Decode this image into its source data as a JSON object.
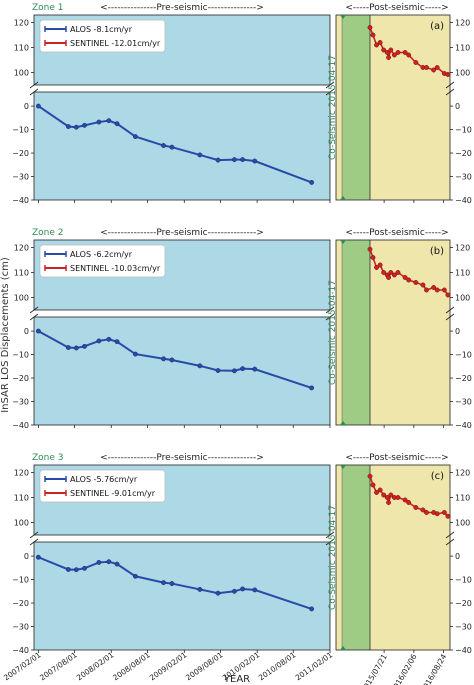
{
  "figure": {
    "ylabel": "InSAR LOS Displacements (cm)",
    "xlabel": "YEAR",
    "pre_label": "<---------------Pre-seismic--------------->",
    "post_label": "<-----Post-seismic----->",
    "co_label": "Co-Seismic 2015-04-17",
    "colors": {
      "pre_bg": "#add8e6",
      "co_bg": "#9fcc84",
      "co_edge": "#a9d08e",
      "post_bg": "#efe6ac",
      "alos": "#2a4aa8",
      "sentinel": "#cc2222",
      "zone_label": "#2e8b57"
    },
    "pre_xticks": [
      "2007/02/01",
      "2007/08/01",
      "2008/02/01",
      "2008/08/01",
      "2009/02/01",
      "2009/08/01",
      "2010/02/01",
      "2010/08/01",
      "2011/02/01"
    ],
    "post_xticks": [
      "2015/07/21",
      "2016/02/06",
      "2016/08/24"
    ]
  },
  "chart_data": [
    {
      "type": "line",
      "zone": "Zone 1",
      "panel_letter": "(a)",
      "series": [
        {
          "name": "ALOS -8.1cm/yr",
          "x": [
            "2007-02-01",
            "2007-07-01",
            "2007-08-10",
            "2007-09-20",
            "2007-12-01",
            "2008-01-20",
            "2008-03-01",
            "2008-06-01",
            "2008-10-20",
            "2008-12-01",
            "2009-04-20",
            "2009-07-20",
            "2009-10-10",
            "2009-11-20",
            "2010-01-20",
            "2010-11-01"
          ],
          "y": [
            0,
            -8.7,
            -9,
            -8.2,
            -6.8,
            -6.2,
            -7.5,
            -13,
            -16.8,
            -17.5,
            -20.8,
            -23,
            -22.8,
            -22.8,
            -23.4,
            -32.5
          ]
        },
        {
          "name": "SENTINEL -12.01cm/yr",
          "x": [
            "2015-04-17",
            "2015-05-07",
            "2015-05-31",
            "2015-06-24",
            "2015-07-18",
            "2015-08-11",
            "2015-08-20",
            "2015-09-04",
            "2015-09-28",
            "2015-10-22",
            "2015-12-09",
            "2016-01-02",
            "2016-02-19",
            "2016-04-07",
            "2016-05-01",
            "2016-06-18",
            "2016-07-12",
            "2016-08-29",
            "2016-09-22"
          ],
          "y": [
            118,
            115,
            111,
            112,
            109,
            108,
            106,
            109,
            107,
            108,
            108,
            107,
            104,
            102,
            102,
            101,
            102,
            99.6,
            99.2
          ]
        }
      ],
      "upper_ylim": [
        95,
        123
      ],
      "upper_yticks": [
        100,
        110,
        120
      ],
      "lower_ylim": [
        -40,
        6
      ],
      "lower_yticks": [
        0,
        -10,
        -20,
        -30,
        -40
      ]
    },
    {
      "type": "line",
      "zone": "Zone 2",
      "panel_letter": "(b)",
      "series": [
        {
          "name": "ALOS -6.2cm/yr",
          "x": [
            "2007-02-01",
            "2007-07-01",
            "2007-08-10",
            "2007-09-20",
            "2007-12-01",
            "2008-01-20",
            "2008-03-01",
            "2008-06-01",
            "2008-10-20",
            "2008-12-01",
            "2009-04-20",
            "2009-07-20",
            "2009-10-10",
            "2009-11-20",
            "2010-01-20",
            "2010-11-01"
          ],
          "y": [
            0,
            -7,
            -7.2,
            -6.5,
            -4.2,
            -3.5,
            -4.5,
            -9.8,
            -11.8,
            -12.3,
            -14.8,
            -16.8,
            -16.9,
            -16,
            -16.2,
            -24.2
          ]
        },
        {
          "name": "SENTINEL -10.03cm/yr",
          "x": [
            "2015-04-17",
            "2015-05-07",
            "2015-05-31",
            "2015-06-24",
            "2015-07-18",
            "2015-08-11",
            "2015-08-20",
            "2015-09-04",
            "2015-09-28",
            "2015-10-22",
            "2015-12-09",
            "2016-01-02",
            "2016-02-19",
            "2016-04-07",
            "2016-05-01",
            "2016-06-18",
            "2016-07-12",
            "2016-08-29",
            "2016-09-22"
          ],
          "y": [
            119.3,
            116,
            112,
            113,
            110,
            109,
            108,
            110,
            109,
            110,
            108,
            107,
            106,
            105,
            103,
            104,
            103,
            103,
            101
          ]
        }
      ],
      "upper_ylim": [
        95,
        123
      ],
      "upper_yticks": [
        100,
        110,
        120
      ],
      "lower_ylim": [
        -40,
        6
      ],
      "lower_yticks": [
        0,
        -10,
        -20,
        -30,
        -40
      ]
    },
    {
      "type": "line",
      "zone": "Zone 3",
      "panel_letter": "(c)",
      "series": [
        {
          "name": "ALOS -5.76cm/yr",
          "x": [
            "2007-02-01",
            "2007-07-01",
            "2007-08-10",
            "2007-09-20",
            "2007-12-01",
            "2008-01-20",
            "2008-03-01",
            "2008-06-01",
            "2008-10-20",
            "2008-12-01",
            "2009-04-20",
            "2009-07-20",
            "2009-10-10",
            "2009-11-20",
            "2010-01-20",
            "2010-11-01"
          ],
          "y": [
            -0.5,
            -5.7,
            -5.8,
            -5.2,
            -2.7,
            -2.4,
            -3.4,
            -8.6,
            -11.3,
            -11.7,
            -14.2,
            -15.8,
            -15,
            -14,
            -14.4,
            -22.5
          ]
        },
        {
          "name": "SENTINEL -9.01cm/yr",
          "x": [
            "2015-04-17",
            "2015-05-07",
            "2015-05-31",
            "2015-06-24",
            "2015-07-18",
            "2015-08-11",
            "2015-08-20",
            "2015-09-04",
            "2015-09-28",
            "2015-10-22",
            "2015-12-09",
            "2016-01-02",
            "2016-02-19",
            "2016-04-07",
            "2016-05-01",
            "2016-06-18",
            "2016-07-12",
            "2016-08-29",
            "2016-09-22"
          ],
          "y": [
            118.5,
            115,
            112,
            113,
            111,
            110,
            108,
            111,
            110,
            110,
            109,
            108,
            106,
            105,
            104,
            104,
            103.5,
            104,
            102.5
          ]
        }
      ],
      "upper_ylim": [
        95,
        123
      ],
      "upper_yticks": [
        100,
        110,
        120
      ],
      "lower_ylim": [
        -40,
        6
      ],
      "lower_yticks": [
        0,
        -10,
        -20,
        -30,
        -40
      ]
    }
  ]
}
